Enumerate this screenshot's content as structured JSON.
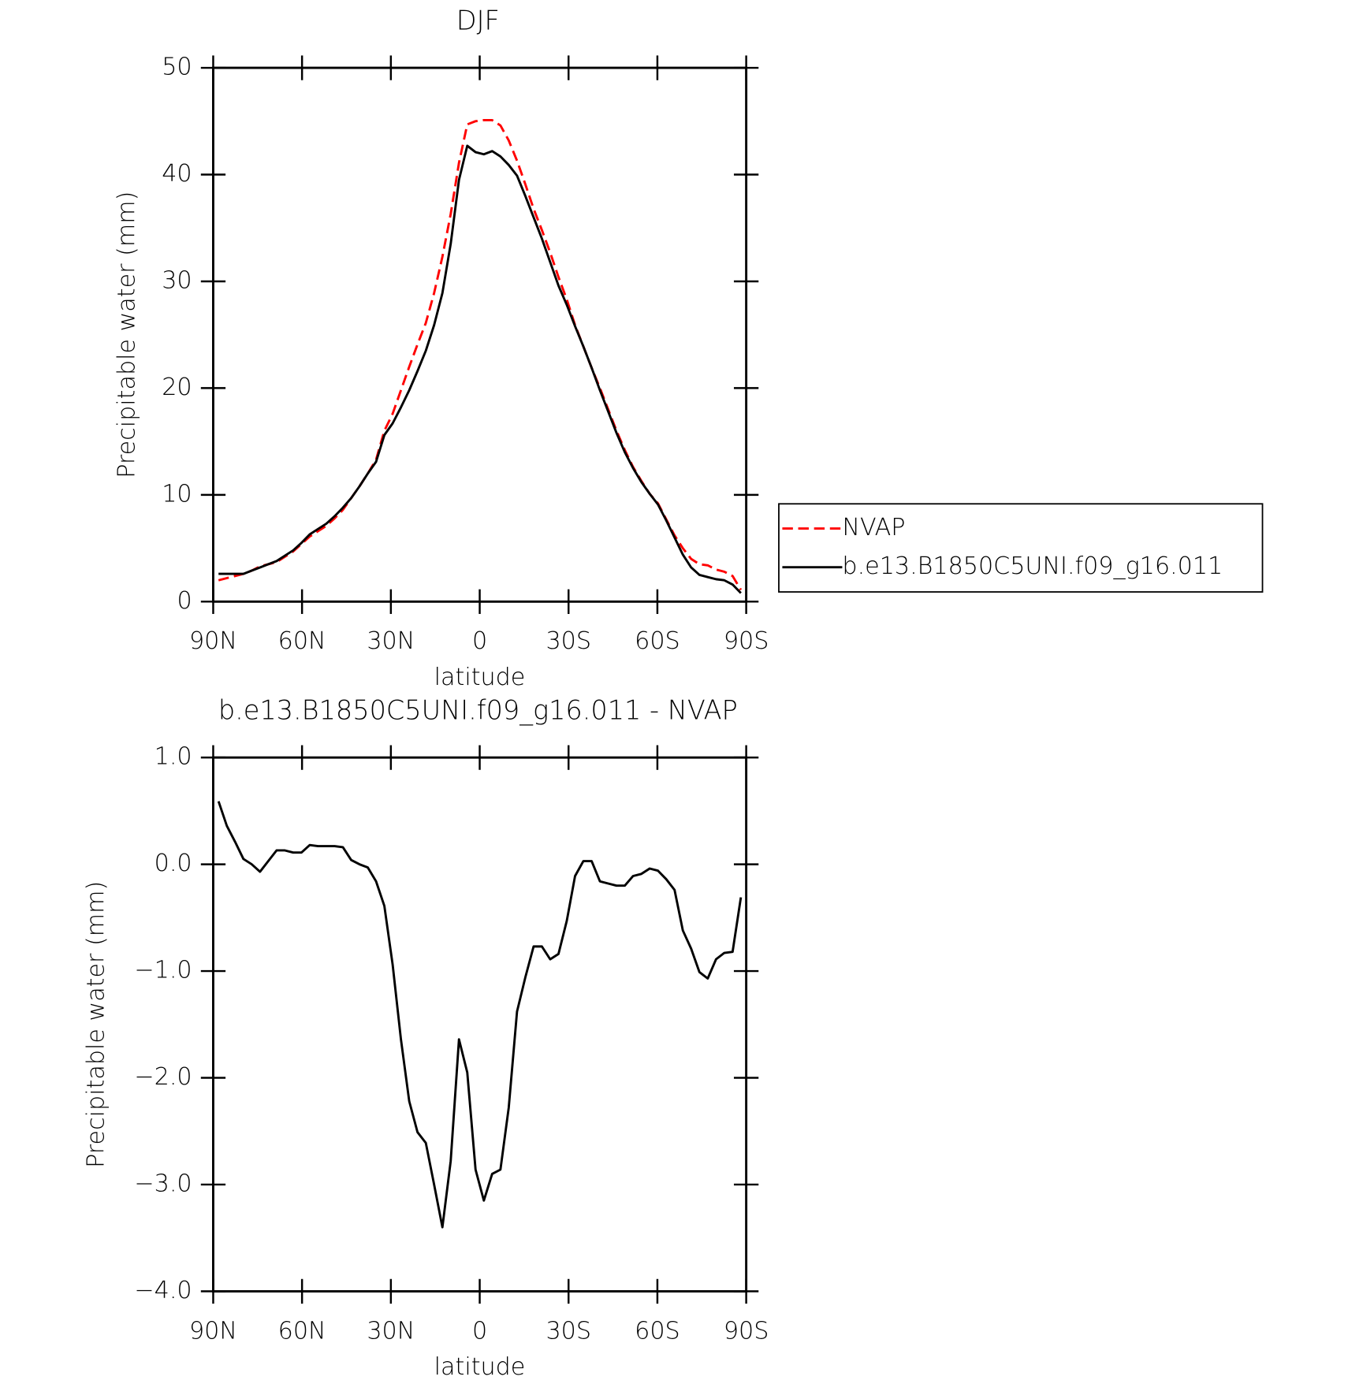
{
  "chart_data": [
    {
      "type": "line",
      "title": "DJF",
      "xlabel": "latitude",
      "ylabel": "Precipitable water (mm)",
      "x": [
        88.2,
        85.4,
        82.6,
        79.8,
        77.0,
        74.2,
        71.4,
        68.6,
        65.8,
        63.0,
        60.2,
        57.4,
        54.6,
        51.8,
        49.0,
        46.2,
        43.4,
        40.6,
        37.8,
        35.0,
        32.2,
        29.4,
        26.6,
        23.8,
        21.0,
        18.2,
        15.4,
        12.6,
        9.8,
        7.0,
        4.2,
        1.4,
        -1.4,
        -4.2,
        -7.0,
        -9.8,
        -12.6,
        -15.4,
        -18.2,
        -21.0,
        -23.8,
        -26.6,
        -29.4,
        -32.2,
        -35.0,
        -37.8,
        -40.6,
        -43.4,
        -46.2,
        -49.0,
        -51.8,
        -54.6,
        -57.4,
        -60.2,
        -63.0,
        -65.8,
        -68.6,
        -71.4,
        -74.2,
        -77.0,
        -79.8,
        -82.6,
        -85.4,
        -88.2
      ],
      "xlim": [
        90,
        -90
      ],
      "xticks": [
        {
          "value": 90,
          "label": "90N"
        },
        {
          "value": 60,
          "label": "60N"
        },
        {
          "value": 30,
          "label": "30N"
        },
        0,
        {
          "value": -30,
          "label": "30S"
        },
        {
          "value": -60,
          "label": "60S"
        },
        {
          "value": -90,
          "label": "90S"
        }
      ],
      "ylim": [
        0,
        50
      ],
      "yticks": [
        0,
        10,
        20,
        30,
        40,
        50
      ],
      "legend": "right",
      "series": [
        {
          "name": "NVAP",
          "color": "#ff0000",
          "dash": "dashed",
          "values": [
            2.0,
            2.2,
            2.4,
            2.6,
            2.9,
            3.3,
            3.5,
            3.7,
            4.2,
            4.7,
            5.4,
            6.1,
            6.6,
            7.1,
            7.8,
            8.6,
            9.7,
            10.8,
            12.0,
            13.3,
            16.0,
            17.6,
            19.8,
            22.0,
            24.1,
            26.1,
            28.9,
            32.3,
            36.3,
            41.1,
            44.7,
            45.0,
            45.1,
            45.1,
            44.6,
            43.2,
            41.3,
            39.1,
            36.8,
            34.8,
            32.7,
            30.4,
            28.3,
            25.9,
            23.9,
            21.9,
            20.0,
            18.0,
            16.0,
            14.2,
            12.6,
            11.3,
            10.1,
            9.2,
            7.7,
            6.2,
            5.0,
            4.0,
            3.5,
            3.4,
            3.0,
            2.8,
            2.4,
            1.1
          ]
        },
        {
          "name": "b.e13.B1850C5UNI.f09_g16.011",
          "color": "#000000",
          "dash": "solid",
          "values": [
            2.6,
            2.6,
            2.6,
            2.6,
            2.9,
            3.2,
            3.5,
            3.8,
            4.3,
            4.8,
            5.5,
            6.3,
            6.8,
            7.3,
            8.0,
            8.8,
            9.7,
            10.8,
            12.0,
            13.1,
            15.6,
            16.7,
            18.2,
            19.8,
            21.6,
            23.5,
            25.9,
            28.9,
            33.5,
            39.5,
            42.7,
            42.1,
            41.9,
            42.2,
            41.7,
            40.9,
            39.9,
            38.0,
            36.0,
            34.0,
            31.8,
            29.6,
            27.8,
            25.8,
            23.9,
            21.9,
            19.8,
            17.8,
            15.8,
            14.0,
            12.5,
            11.2,
            10.1,
            9.1,
            7.6,
            6.0,
            4.4,
            3.2,
            2.5,
            2.3,
            2.1,
            2.0,
            1.6,
            0.8
          ]
        }
      ]
    },
    {
      "type": "line",
      "title": "b.e13.B1850C5UNI.f09_g16.011 - NVAP",
      "xlabel": "latitude",
      "ylabel": "Precipitable water (mm)",
      "x": [
        88.2,
        85.4,
        82.6,
        79.8,
        77.0,
        74.2,
        71.4,
        68.6,
        65.8,
        63.0,
        60.2,
        57.4,
        54.6,
        51.8,
        49.0,
        46.2,
        43.4,
        40.6,
        37.8,
        35.0,
        32.2,
        29.4,
        26.6,
        23.8,
        21.0,
        18.2,
        15.4,
        12.6,
        9.8,
        7.0,
        4.2,
        1.4,
        -1.4,
        -4.2,
        -7.0,
        -9.8,
        -12.6,
        -15.4,
        -18.2,
        -21.0,
        -23.8,
        -26.6,
        -29.4,
        -32.2,
        -35.0,
        -37.8,
        -40.6,
        -43.4,
        -46.2,
        -49.0,
        -51.8,
        -54.6,
        -57.4,
        -60.2,
        -63.0,
        -65.8,
        -68.6,
        -71.4,
        -74.2,
        -77.0,
        -79.8,
        -82.6,
        -85.4,
        -88.2
      ],
      "xlim": [
        90,
        -90
      ],
      "xticks": [
        {
          "value": 90,
          "label": "90N"
        },
        {
          "value": 60,
          "label": "60N"
        },
        {
          "value": 30,
          "label": "30N"
        },
        0,
        {
          "value": -30,
          "label": "30S"
        },
        {
          "value": -60,
          "label": "60S"
        },
        {
          "value": -90,
          "label": "90S"
        }
      ],
      "ylim": [
        -4,
        1
      ],
      "yticks": [
        {
          "value": -4,
          "label": "−4.0"
        },
        {
          "value": -3,
          "label": "−3.0"
        },
        {
          "value": -2,
          "label": "−2.0"
        },
        {
          "value": -1,
          "label": "−1.0"
        },
        {
          "value": 0,
          "label": "0.0"
        },
        {
          "value": 1,
          "label": "1.0"
        }
      ],
      "series": [
        {
          "color": "#000000",
          "dash": "solid",
          "values": [
            0.59,
            0.36,
            0.21,
            0.05,
            0.0,
            -0.07,
            0.03,
            0.13,
            0.13,
            0.11,
            0.11,
            0.18,
            0.17,
            0.17,
            0.17,
            0.16,
            0.04,
            0.0,
            -0.03,
            -0.16,
            -0.39,
            -0.94,
            -1.64,
            -2.22,
            -2.51,
            -2.61,
            -3.0,
            -3.4,
            -2.78,
            -1.64,
            -1.95,
            -2.86,
            -3.15,
            -2.9,
            -2.86,
            -2.28,
            -1.38,
            -1.06,
            -0.77,
            -0.77,
            -0.89,
            -0.84,
            -0.53,
            -0.11,
            0.03,
            0.03,
            -0.16,
            -0.18,
            -0.2,
            -0.2,
            -0.11,
            -0.09,
            -0.04,
            -0.06,
            -0.14,
            -0.24,
            -0.62,
            -0.79,
            -1.01,
            -1.07,
            -0.89,
            -0.83,
            -0.82,
            -0.31
          ]
        }
      ]
    }
  ]
}
